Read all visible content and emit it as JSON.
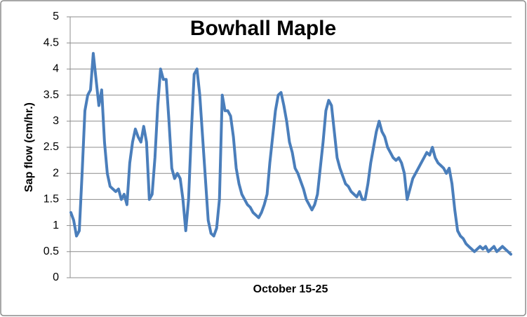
{
  "chart_data": {
    "type": "line",
    "title": "Bowhall Maple",
    "y_label": "Sap flow (cm/hr.)",
    "x_label": "October 15-25",
    "ylim": [
      0,
      5
    ],
    "yticks": [
      0,
      0.5,
      1,
      1.5,
      2,
      2.5,
      3,
      3.5,
      4,
      4.5,
      5
    ],
    "grid": true,
    "color": "#4a7ebb",
    "values": [
      1.25,
      1.1,
      0.8,
      0.9,
      2.0,
      3.2,
      3.5,
      3.6,
      4.3,
      3.8,
      3.3,
      3.6,
      2.6,
      2.0,
      1.75,
      1.7,
      1.65,
      1.7,
      1.5,
      1.6,
      1.4,
      2.2,
      2.6,
      2.85,
      2.7,
      2.6,
      2.9,
      2.6,
      1.5,
      1.6,
      2.3,
      3.3,
      4.0,
      3.8,
      3.8,
      3.0,
      2.1,
      1.9,
      2.0,
      1.9,
      1.5,
      0.9,
      1.5,
      2.8,
      3.9,
      4.0,
      3.5,
      2.7,
      1.9,
      1.1,
      0.85,
      0.8,
      0.95,
      1.5,
      3.5,
      3.2,
      3.2,
      3.1,
      2.7,
      2.1,
      1.8,
      1.6,
      1.5,
      1.4,
      1.35,
      1.25,
      1.2,
      1.15,
      1.25,
      1.4,
      1.6,
      2.2,
      2.7,
      3.2,
      3.5,
      3.55,
      3.3,
      3.0,
      2.6,
      2.4,
      2.1,
      2.0,
      1.85,
      1.7,
      1.5,
      1.4,
      1.3,
      1.4,
      1.6,
      2.1,
      2.6,
      3.2,
      3.4,
      3.3,
      2.8,
      2.3,
      2.1,
      1.95,
      1.8,
      1.75,
      1.65,
      1.6,
      1.55,
      1.65,
      1.5,
      1.5,
      1.8,
      2.2,
      2.5,
      2.8,
      3.0,
      2.8,
      2.7,
      2.5,
      2.4,
      2.3,
      2.25,
      2.3,
      2.2,
      2.0,
      1.5,
      1.7,
      1.9,
      2.0,
      2.1,
      2.2,
      2.3,
      2.4,
      2.35,
      2.5,
      2.3,
      2.2,
      2.15,
      2.1,
      2.0,
      2.1,
      1.8,
      1.3,
      0.9,
      0.8,
      0.75,
      0.65,
      0.6,
      0.55,
      0.5,
      0.55,
      0.6,
      0.55,
      0.6,
      0.5,
      0.55,
      0.6,
      0.5,
      0.55,
      0.6,
      0.55,
      0.5,
      0.45
    ]
  }
}
